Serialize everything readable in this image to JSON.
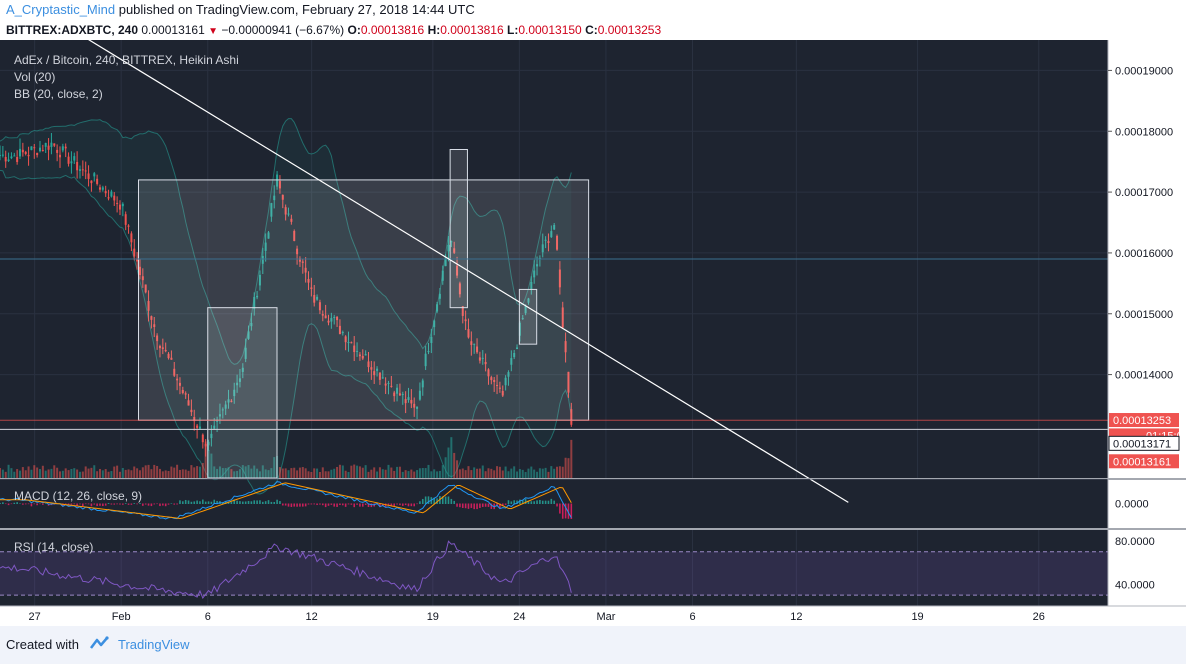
{
  "header": {
    "author": "A_Cryptastic_Mind",
    "published_text": " published on TradingView.com, February 27, 2018 14:44 UTC",
    "symbol": "BITTREX:ADXBTC, 240",
    "last_price": "0.00013161",
    "change": "−0.00000941 (−6.67%)",
    "o_label": "O:",
    "o_value": "0.00013816",
    "h_label": "H:",
    "h_value": "0.00013816",
    "l_label": "L:",
    "l_value": "0.00013150",
    "c_label": "C:",
    "c_value": "0.00013253"
  },
  "legend": {
    "main": "AdEx / Bitcoin, 240, BITTREX, Heikin Ashi",
    "vol": "Vol (20)",
    "bb": "BB (20, close, 2)",
    "macd": "MACD (12, 26, close, 9)",
    "rsi": "RSI (14, close)"
  },
  "price_axis": {
    "ticks": [
      "0.00019000",
      "0.00018000",
      "0.00017000",
      "0.00016000",
      "0.00015000",
      "0.00014000"
    ],
    "tick_values": [
      0.00019,
      0.00018,
      0.00017,
      0.00016,
      0.00015,
      0.00014
    ],
    "labels": [
      {
        "text": "0.00013253",
        "color": "#ef5350",
        "value": 0.00013253
      },
      {
        "text": "01:15:06",
        "color": "#ef5350",
        "value": 0.00013
      },
      {
        "text": "0.00013171",
        "color": "#ffffff",
        "value": 0.0001287
      },
      {
        "text": "0.00013161",
        "color": "#ef5350",
        "value": 0.00012575
      }
    ]
  },
  "macd_axis": {
    "ticks": [
      "0.0000"
    ]
  },
  "rsi_axis": {
    "ticks": [
      "80.0000",
      "40.0000"
    ]
  },
  "time_axis": {
    "labels": [
      "27",
      "Feb",
      "6",
      "12",
      "19",
      "24",
      "Mar",
      "6",
      "12",
      "19",
      "26"
    ]
  },
  "footer": {
    "created_with": "Created with",
    "brand": "TradingView"
  },
  "colors": {
    "up": "#26a69a",
    "down": "#ef5350",
    "bg": "#1e2430",
    "grid": "#2a3140",
    "trendline": "#ffffff",
    "rect_fill": "rgba(255,255,255,0.12)",
    "rsi": "#7e57c2"
  },
  "chart_data": {
    "type": "candlestick",
    "symbol": "ADXBTC",
    "interval": "240",
    "chart_style": "Heikin Ashi",
    "y_range": [
      0.000123,
      0.000195
    ],
    "x_range": [
      "2018-01-25",
      "2018-03-30"
    ],
    "key_points": [
      {
        "date": "2018-01-26",
        "price": 0.000176
      },
      {
        "date": "2018-01-28",
        "price": 0.000178
      },
      {
        "date": "2018-02-01",
        "price": 0.000168
      },
      {
        "date": "2018-02-03",
        "price": 0.000147
      },
      {
        "date": "2018-02-06",
        "price": 0.000128
      },
      {
        "date": "2018-02-08",
        "price": 0.000141
      },
      {
        "date": "2018-02-10",
        "price": 0.000172
      },
      {
        "date": "2018-02-12",
        "price": 0.000153
      },
      {
        "date": "2018-02-15",
        "price": 0.000143
      },
      {
        "date": "2018-02-18",
        "price": 0.000134
      },
      {
        "date": "2018-02-20",
        "price": 0.000163
      },
      {
        "date": "2018-02-21",
        "price": 0.000146
      },
      {
        "date": "2018-02-23",
        "price": 0.000136
      },
      {
        "date": "2018-02-25",
        "price": 0.000158
      },
      {
        "date": "2018-02-26",
        "price": 0.000165
      },
      {
        "date": "2018-02-27",
        "price": 0.0001325
      }
    ],
    "volume_peaks": [
      {
        "date": "2018-02-06",
        "level": 0.9
      },
      {
        "date": "2018-02-10",
        "level": 0.55
      },
      {
        "date": "2018-02-20",
        "level": 1.0
      },
      {
        "date": "2018-02-27",
        "level": 0.8
      }
    ],
    "macd_range": [
      -1.3e-05,
      1.3e-05
    ],
    "macd_points": [
      {
        "date": "2018-01-26",
        "value": 2e-06
      },
      {
        "date": "2018-02-04",
        "value": -8e-06
      },
      {
        "date": "2018-02-10",
        "value": 1.1e-05
      },
      {
        "date": "2018-02-18",
        "value": -5e-06
      },
      {
        "date": "2018-02-20",
        "value": 1e-05
      },
      {
        "date": "2018-02-23",
        "value": -3e-06
      },
      {
        "date": "2018-02-26",
        "value": 9e-06
      },
      {
        "date": "2018-02-27",
        "value": -7e-06
      }
    ],
    "rsi_range": [
      20,
      90
    ],
    "rsi_points": [
      {
        "date": "2018-01-26",
        "value": 55
      },
      {
        "date": "2018-02-03",
        "value": 35
      },
      {
        "date": "2018-02-06",
        "value": 30
      },
      {
        "date": "2018-02-10",
        "value": 75
      },
      {
        "date": "2018-02-18",
        "value": 35
      },
      {
        "date": "2018-02-20",
        "value": 78
      },
      {
        "date": "2018-02-23",
        "value": 40
      },
      {
        "date": "2018-02-26",
        "value": 68
      },
      {
        "date": "2018-02-27",
        "value": 35
      }
    ],
    "drawings": {
      "trendline": {
        "from": {
          "date": "2018-01-29",
          "price": 0.000197
        },
        "to": {
          "date": "2018-03-15",
          "price": 0.000119
        }
      },
      "support_line": 0.000131,
      "resistance_line": 0.000159,
      "current_price_line": 0.0001325,
      "rectangles": [
        {
          "from": "2018-02-02",
          "to": "2018-02-28",
          "top": 0.000172,
          "bottom": 0.0001325
        },
        {
          "from": "2018-02-06",
          "to": "2018-02-10",
          "top": 0.000151,
          "bottom": 0.000123
        },
        {
          "from": "2018-02-20",
          "to": "2018-02-21",
          "top": 0.000177,
          "bottom": 0.000151
        },
        {
          "from": "2018-02-24",
          "to": "2018-02-25",
          "top": 0.000154,
          "bottom": 0.000145
        }
      ]
    }
  }
}
